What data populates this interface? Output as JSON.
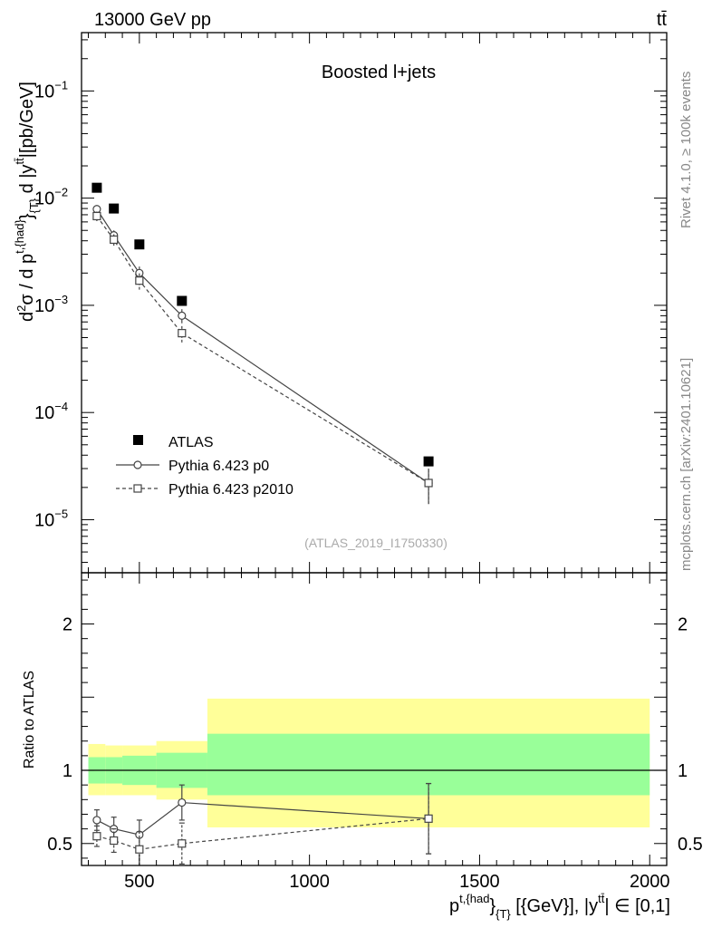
{
  "header": {
    "energy_label": "13000 GeV pp",
    "process_label": "tt̄",
    "rivet_label": "Rivet 4.1.0, ≥ 100k events",
    "mcplots_label": "mcplots.cern.ch [arXiv:2401.10621]",
    "analysis_id": "(ATLAS_2019_I1750330)"
  },
  "colors": {
    "band_outer": "#ffff99",
    "band_inner": "#99ff99",
    "data_marker": "#000000",
    "mc_line": "#444444",
    "ref_line": "#000000"
  },
  "chart_data": {
    "type": "scatter",
    "title": "Boosted l+jets",
    "xlabel": "p^{t,{had}}_{T} [{GeV}], |y^{tt̄}| ∈ [0,1]",
    "xlabel_base": "p",
    "xlabel_sup": "t,{had",
    "xlabel_brace": "}",
    "xlabel_sub": "{T}",
    "xlabel_tail": " [{GeV}], |y",
    "xlabel_sup2": "tt̄",
    "xlabel_end": "| ∈ [0,1]",
    "ylabel_main": "d²σ / d p^{t,{had}}_{T} d |y^{tt̄}| [pb/GeV]",
    "ylabel_main_a": "d",
    "ylabel_main_b": "2",
    "ylabel_main_c": "σ / d p",
    "ylabel_main_d": "t,{had}",
    "ylabel_main_e": "}",
    "ylabel_main_f": "{T}",
    "ylabel_main_g": " d |y",
    "ylabel_main_h": "tt̄",
    "ylabel_main_i": "|[pb/GeV]",
    "ylabel_ratio": "Ratio to ATLAS",
    "xlim": [
      330,
      2050
    ],
    "ylim_main": [
      3.2e-06,
      0.35
    ],
    "ylim_ratio": [
      0.35,
      2.35
    ],
    "x_ticks": [
      {
        "value": 500,
        "label": "500"
      },
      {
        "value": 1000,
        "label": "1000"
      },
      {
        "value": 1500,
        "label": "1500"
      },
      {
        "value": 2000,
        "label": "2000"
      }
    ],
    "y_ticks_main": [
      {
        "value": 0.1,
        "base": "10",
        "exp": "−1"
      },
      {
        "value": 0.01,
        "base": "10",
        "exp": "−2"
      },
      {
        "value": 0.001,
        "base": "10",
        "exp": "−3"
      },
      {
        "value": 0.0001,
        "base": "10",
        "exp": "−4"
      },
      {
        "value": 1e-05,
        "base": "10",
        "exp": "−5"
      }
    ],
    "y_ticks_ratio": [
      {
        "value": 2,
        "label": "2"
      },
      {
        "value": 1,
        "label": "1"
      },
      {
        "value": 0.5,
        "label": "0.5"
      }
    ],
    "legend_position": "bottom-left",
    "series": [
      {
        "name": "ATLAS",
        "style": "data",
        "x": [
          375,
          425,
          500,
          625,
          1350
        ],
        "y": [
          0.0125,
          0.008,
          0.0037,
          0.0011,
          3.5e-05
        ],
        "xerr": [
          25,
          25,
          50,
          75,
          650
        ]
      },
      {
        "name": "Pythia 6.423 p0",
        "style": "solid-circle",
        "x": [
          375,
          425,
          500,
          625,
          1350
        ],
        "y": [
          0.0079,
          0.0045,
          0.002,
          0.0008,
          2.2e-05
        ],
        "yerr": [
          0.0007,
          0.0005,
          0.0003,
          0.00012,
          8e-06
        ],
        "ratio": [
          0.66,
          0.6,
          0.56,
          0.78,
          0.67
        ],
        "ratio_err": [
          0.07,
          0.08,
          0.1,
          0.12,
          0.24
        ]
      },
      {
        "name": "Pythia 6.423 p2010",
        "style": "dashed-square",
        "x": [
          375,
          425,
          500,
          625,
          1350
        ],
        "y": [
          0.0068,
          0.0041,
          0.0017,
          0.00055,
          2.2e-05
        ],
        "yerr": [
          0.0007,
          0.0005,
          0.0003,
          0.0001,
          8e-06
        ],
        "ratio": [
          0.55,
          0.52,
          0.46,
          0.5,
          0.67
        ],
        "ratio_err": [
          0.07,
          0.08,
          0.12,
          0.14,
          0.24
        ]
      }
    ],
    "bands": [
      {
        "x0": 350,
        "x1": 400,
        "inner": [
          0.91,
          1.09
        ],
        "outer": [
          0.83,
          1.18
        ]
      },
      {
        "x0": 400,
        "x1": 450,
        "inner": [
          0.91,
          1.09
        ],
        "outer": [
          0.83,
          1.17
        ]
      },
      {
        "x0": 450,
        "x1": 550,
        "inner": [
          0.9,
          1.1
        ],
        "outer": [
          0.83,
          1.17
        ]
      },
      {
        "x0": 550,
        "x1": 700,
        "inner": [
          0.88,
          1.12
        ],
        "outer": [
          0.8,
          1.2
        ]
      },
      {
        "x0": 700,
        "x1": 2000,
        "inner": [
          0.83,
          1.25
        ],
        "outer": [
          0.61,
          1.49
        ]
      }
    ]
  }
}
